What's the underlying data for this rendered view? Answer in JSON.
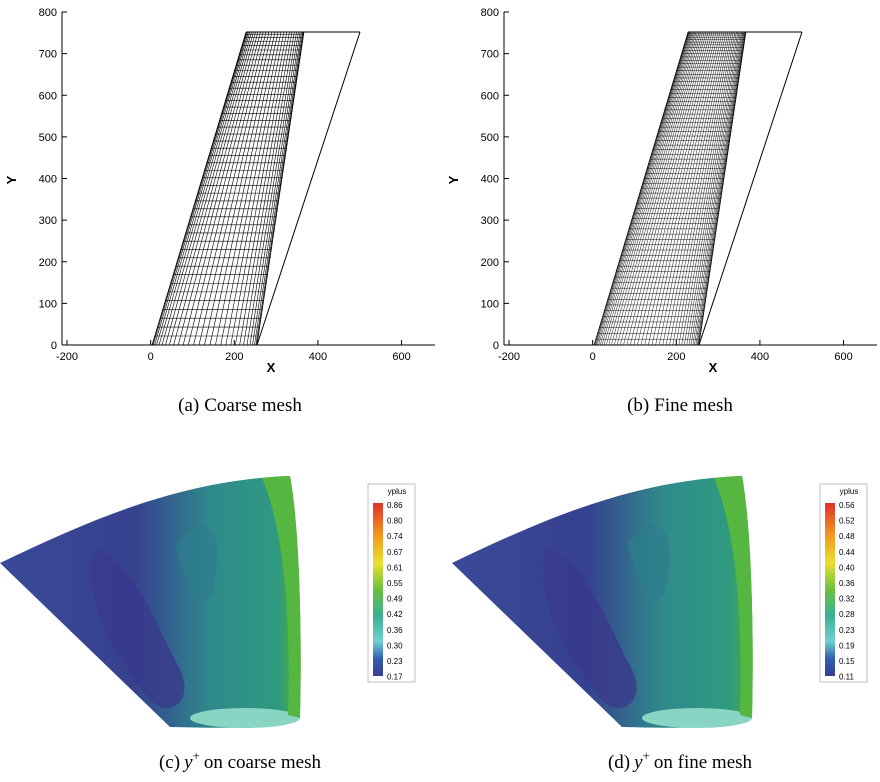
{
  "figure": {
    "panels": [
      {
        "caption_prefix": "(a)",
        "caption": "Coarse mesh",
        "xlabel": "X",
        "ylabel": "Y",
        "xlim": [
          -200,
          680
        ],
        "ylim": [
          0,
          800
        ],
        "xticks": [
          -200,
          0,
          200,
          400,
          600
        ],
        "yticks": [
          0,
          100,
          200,
          300,
          400,
          500,
          600,
          700,
          800
        ]
      },
      {
        "caption_prefix": "(b)",
        "caption": "Fine mesh",
        "xlabel": "X",
        "ylabel": "Y",
        "xlim": [
          -200,
          680
        ],
        "ylim": [
          0,
          800
        ],
        "xticks": [
          -200,
          0,
          200,
          400,
          600
        ],
        "yticks": [
          0,
          100,
          200,
          300,
          400,
          500,
          600,
          700,
          800
        ]
      },
      {
        "caption_prefix": "(c)",
        "caption_var": "y",
        "caption_sup": "+",
        "caption": "on coarse mesh",
        "legend_title": "yplus",
        "levels": [
          "0.86",
          "0.80",
          "0.74",
          "0.67",
          "0.61",
          "0.55",
          "0.49",
          "0.42",
          "0.36",
          "0.30",
          "0.23",
          "0.17"
        ]
      },
      {
        "caption_prefix": "(d)",
        "caption_var": "y",
        "caption_sup": "+",
        "caption": "on fine mesh",
        "legend_title": "yplus",
        "levels": [
          "0.56",
          "0.52",
          "0.48",
          "0.44",
          "0.40",
          "0.36",
          "0.32",
          "0.28",
          "0.23",
          "0.19",
          "0.15",
          "0.11"
        ]
      }
    ]
  }
}
